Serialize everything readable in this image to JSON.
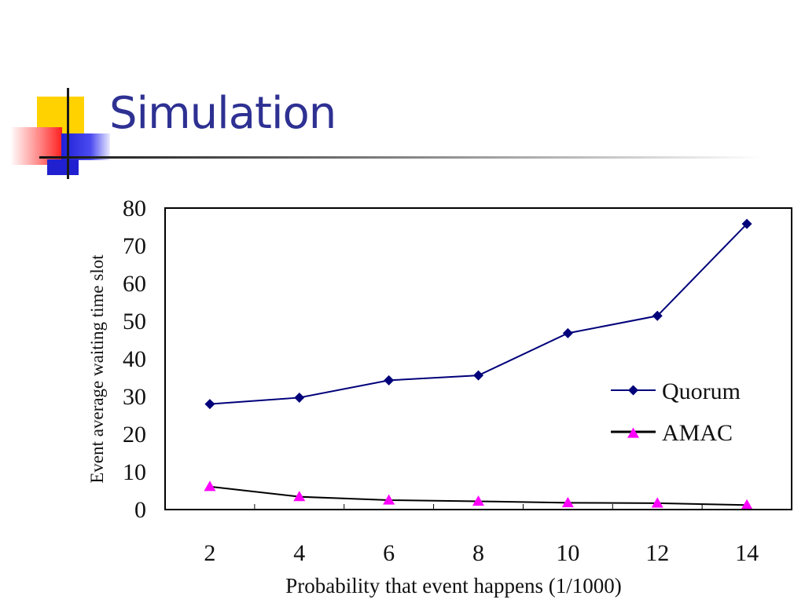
{
  "slide": {
    "title": "Simulation"
  },
  "chart_data": {
    "type": "line",
    "xlabel": "Probability that event happens (1/1000)",
    "ylabel": "Event average waiting time slot",
    "x": [
      2,
      4,
      6,
      8,
      10,
      12,
      14
    ],
    "xticks": [
      "2",
      "4",
      "6",
      "8",
      "10",
      "12",
      "14"
    ],
    "ylim": [
      0,
      80
    ],
    "yticks": [
      "0",
      "10",
      "20",
      "30",
      "40",
      "50",
      "60",
      "70",
      "80"
    ],
    "grid": false,
    "legend_position": "right",
    "series": [
      {
        "name": "Quorum",
        "values": [
          28,
          29.7,
          34.3,
          35.6,
          46.8,
          51.4,
          75.8
        ],
        "color": "#00007a",
        "marker": "diamond"
      },
      {
        "name": "AMAC",
        "values": [
          6.1,
          3.4,
          2.5,
          2.2,
          1.8,
          1.7,
          1.2
        ],
        "color": "#000000",
        "marker": "triangle",
        "marker_color": "#ff00ff"
      }
    ]
  }
}
